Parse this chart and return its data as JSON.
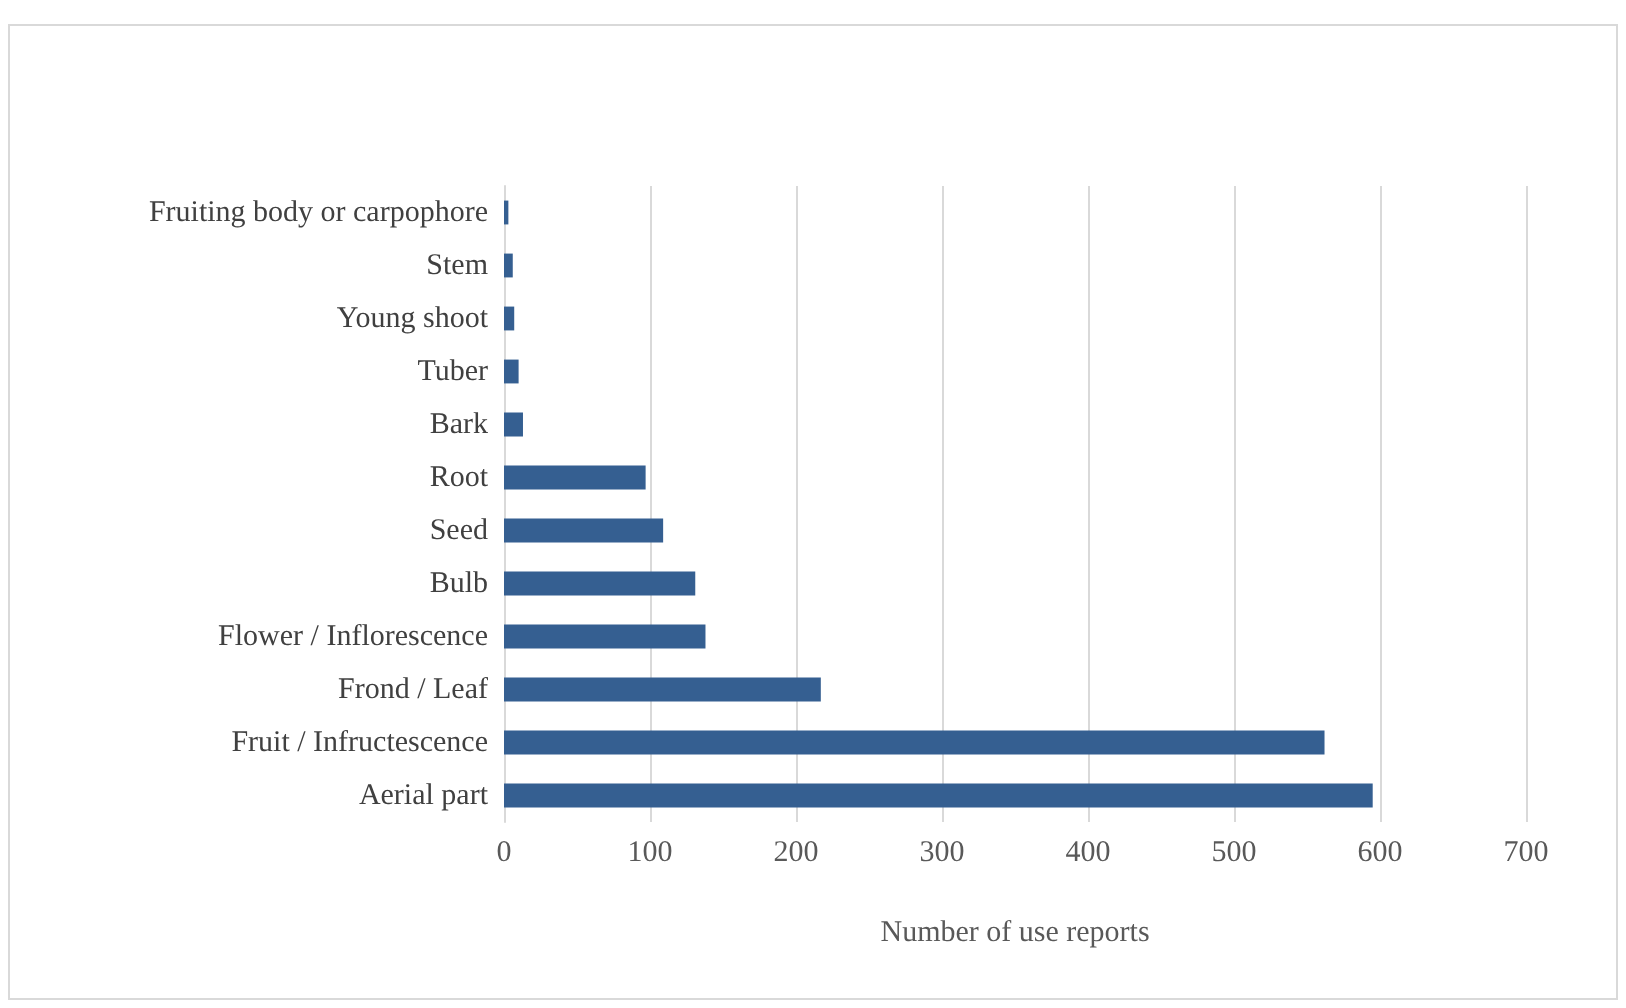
{
  "chart_data": {
    "type": "bar",
    "orientation": "horizontal",
    "xlabel": "Number of use reports",
    "categories": [
      "Fruiting body or carpophore",
      "Stem",
      "Young shoot",
      "Tuber",
      "Bark",
      "Root",
      "Seed",
      "Bulb",
      "Flower / Inflorescence",
      "Frond / Leaf",
      "Fruit / Infructescence",
      "Aerial part"
    ],
    "values": [
      3,
      6,
      7,
      10,
      13,
      97,
      109,
      131,
      138,
      217,
      562,
      595
    ],
    "color": "#355f91",
    "xlim": [
      0,
      700
    ],
    "xticks": [
      0,
      100,
      200,
      300,
      400,
      500,
      600,
      700
    ],
    "grid": "x"
  }
}
